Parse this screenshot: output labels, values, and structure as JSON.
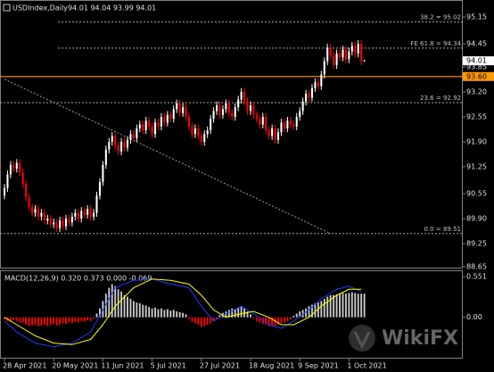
{
  "chart_data": {
    "type": "candlestick",
    "title": "USDIndex,Daily",
    "ohlc_label": "94.01 94.04 93.99 94.01",
    "up_color": "#ffffff",
    "down_color": "#ff0000",
    "open": [
      90.5,
      90.7,
      91.05,
      91.3,
      91.2,
      91.35,
      91.1,
      90.8,
      90.45,
      90.2,
      90.05,
      90.15,
      89.95,
      90.05,
      89.85,
      89.9,
      89.75,
      89.8,
      89.65,
      89.85,
      89.7,
      89.9,
      89.8,
      89.95,
      90.05,
      89.9,
      90.1,
      90.0,
      90.15,
      89.95,
      90.05,
      90.5,
      90.85,
      91.3,
      91.7,
      91.9,
      92.05,
      91.8,
      91.65,
      91.9,
      91.75,
      91.95,
      92.1,
      92.0,
      92.25,
      92.35,
      92.2,
      92.45,
      92.3,
      92.1,
      92.4,
      92.3,
      92.55,
      92.4,
      92.6,
      92.5,
      92.75,
      92.9,
      92.65,
      92.8,
      92.55,
      92.3,
      92.1,
      92.25,
      92.05,
      91.9,
      92.1,
      92.2,
      92.5,
      92.7,
      92.85,
      92.6,
      92.75,
      92.9,
      92.65,
      92.55,
      92.8,
      93.0,
      93.2,
      92.95,
      92.7,
      92.85,
      92.6,
      92.5,
      92.35,
      92.55,
      92.2,
      92.05,
      92.25,
      91.95,
      92.15,
      92.4,
      92.25,
      92.45,
      92.35,
      92.3,
      92.55,
      92.7,
      92.95,
      93.15,
      93.05,
      93.3,
      93.45,
      93.35,
      93.65,
      94.0,
      94.35,
      94.15,
      93.9,
      94.2,
      94.1,
      94.3,
      94.05,
      94.25,
      94.4,
      94.2,
      94.45,
      94.01
    ],
    "high": [
      90.8,
      91.15,
      91.4,
      91.4,
      91.45,
      91.45,
      91.2,
      90.9,
      90.55,
      90.3,
      90.25,
      90.25,
      90.15,
      90.15,
      90.0,
      90.0,
      89.9,
      89.9,
      89.95,
      89.95,
      90.0,
      90.0,
      90.05,
      90.15,
      90.15,
      90.2,
      90.2,
      90.25,
      90.25,
      90.15,
      90.6,
      90.95,
      91.4,
      91.8,
      92.0,
      92.15,
      92.15,
      91.9,
      92.0,
      92.0,
      92.05,
      92.2,
      92.2,
      92.35,
      92.45,
      92.45,
      92.55,
      92.55,
      92.4,
      92.5,
      92.5,
      92.65,
      92.65,
      92.7,
      92.7,
      92.85,
      93.0,
      93.0,
      92.9,
      92.9,
      92.65,
      92.4,
      92.35,
      92.35,
      92.15,
      92.2,
      92.3,
      92.6,
      92.8,
      92.95,
      92.95,
      92.85,
      93.0,
      93.0,
      92.75,
      92.9,
      93.1,
      93.3,
      93.3,
      93.05,
      92.95,
      92.95,
      92.7,
      92.6,
      92.65,
      92.65,
      92.3,
      92.35,
      92.35,
      92.25,
      92.5,
      92.5,
      92.55,
      92.55,
      92.45,
      92.65,
      92.8,
      93.05,
      93.25,
      93.25,
      93.4,
      93.55,
      93.55,
      93.75,
      94.1,
      94.45,
      94.45,
      94.25,
      94.3,
      94.3,
      94.4,
      94.4,
      94.35,
      94.5,
      94.5,
      94.55,
      94.55,
      94.04
    ],
    "low": [
      90.4,
      90.6,
      90.95,
      91.1,
      91.1,
      91.0,
      90.7,
      90.35,
      90.1,
      89.95,
      89.95,
      89.85,
      89.85,
      89.75,
      89.75,
      89.65,
      89.65,
      89.55,
      89.55,
      89.6,
      89.6,
      89.7,
      89.7,
      89.85,
      89.8,
      89.8,
      89.9,
      89.9,
      89.85,
      89.85,
      89.95,
      90.4,
      90.75,
      91.2,
      91.6,
      91.8,
      91.7,
      91.55,
      91.55,
      91.65,
      91.65,
      91.85,
      91.9,
      91.9,
      92.15,
      92.1,
      92.1,
      92.2,
      92.0,
      92.0,
      92.2,
      92.2,
      92.3,
      92.3,
      92.4,
      92.4,
      92.65,
      92.55,
      92.55,
      92.45,
      92.2,
      92.0,
      92.0,
      91.95,
      91.8,
      91.8,
      92.0,
      92.1,
      92.4,
      92.6,
      92.5,
      92.5,
      92.65,
      92.55,
      92.45,
      92.45,
      92.7,
      92.9,
      92.85,
      92.6,
      92.6,
      92.5,
      92.4,
      92.25,
      92.25,
      92.1,
      91.95,
      91.95,
      91.85,
      91.85,
      92.05,
      92.15,
      92.15,
      92.25,
      92.2,
      92.2,
      92.45,
      92.6,
      92.85,
      92.95,
      92.95,
      93.2,
      93.25,
      93.25,
      93.55,
      93.9,
      94.05,
      93.8,
      93.8,
      94.0,
      94.0,
      93.95,
      93.95,
      94.15,
      94.1,
      94.1,
      93.9,
      93.99
    ],
    "close": [
      90.7,
      91.05,
      91.3,
      91.2,
      91.35,
      91.1,
      90.8,
      90.45,
      90.2,
      90.05,
      90.15,
      89.95,
      90.05,
      89.85,
      89.9,
      89.75,
      89.8,
      89.65,
      89.85,
      89.7,
      89.9,
      89.8,
      89.95,
      90.05,
      89.9,
      90.1,
      90.0,
      90.15,
      89.95,
      90.05,
      90.5,
      90.85,
      91.3,
      91.7,
      91.9,
      92.05,
      91.8,
      91.65,
      91.9,
      91.75,
      91.95,
      92.1,
      92.0,
      92.25,
      92.35,
      92.2,
      92.45,
      92.3,
      92.1,
      92.4,
      92.3,
      92.55,
      92.4,
      92.6,
      92.5,
      92.75,
      92.9,
      92.65,
      92.8,
      92.55,
      92.3,
      92.1,
      92.25,
      92.05,
      91.9,
      92.1,
      92.2,
      92.5,
      92.7,
      92.85,
      92.6,
      92.75,
      92.9,
      92.65,
      92.55,
      92.8,
      93.0,
      93.2,
      92.95,
      92.7,
      92.85,
      92.6,
      92.5,
      92.35,
      92.55,
      92.2,
      92.05,
      92.25,
      91.95,
      92.15,
      92.4,
      92.25,
      92.45,
      92.35,
      92.3,
      92.55,
      92.7,
      92.95,
      93.15,
      93.05,
      93.3,
      93.45,
      93.35,
      93.65,
      94.0,
      94.35,
      94.15,
      93.9,
      94.2,
      94.1,
      94.3,
      94.05,
      94.25,
      94.4,
      94.2,
      94.45,
      94.0,
      94.01
    ],
    "xlim": [
      -1.45,
      149
    ],
    "xticks": [
      {
        "value": 0,
        "label": "28 Apr 2021"
      },
      {
        "value": 16,
        "label": "20 May 2021"
      },
      {
        "value": 32,
        "label": "11 Jun 2021"
      },
      {
        "value": 48,
        "label": "5 Jul 2021"
      },
      {
        "value": 64,
        "label": "27 Jul 2021"
      },
      {
        "value": 80,
        "label": "18 Aug 2021"
      },
      {
        "value": 96,
        "label": "9 Sep 2021"
      },
      {
        "value": 112,
        "label": "1 Oct 2021"
      }
    ],
    "ylim": [
      88.6,
      95.57
    ],
    "yticks": [
      95.15,
      94.45,
      93.85,
      {
        "value": 93.2,
        "label": "93.20"
      },
      92.55,
      {
        "value": 91.9,
        "label": "91.90"
      },
      91.25,
      90.55,
      {
        "value": 89.9,
        "label": "89.90"
      },
      89.25,
      88.65
    ],
    "levels": [
      {
        "label": "38.2 = 95.02",
        "value": 95.02
      },
      {
        "label": "FE 61.8 = 94.34",
        "value": 94.34
      },
      {
        "label": "23.6 = 92.92",
        "value": 92.92
      },
      {
        "label": "0.0 = 89.51",
        "value": 89.51
      }
    ],
    "level_color": "#c0c0c0",
    "horizontal_line": {
      "value": 93.6,
      "label": "93.60",
      "color": "#ff9900"
    },
    "last_price": 94.01,
    "trendline": {
      "x": [
        0,
        106
      ],
      "y": [
        93.53,
        89.51
      ],
      "color": "#c0c0c0"
    },
    "indicator": {
      "type": "macd",
      "label": "MACD(12,26,9) 0.320 0.373 0.000 -0.069",
      "ylim": [
        -0.56,
        0.625
      ],
      "yticks": [
        0.551,
        {
          "value": 0,
          "label": "0.00"
        }
      ],
      "histogram": [
        -0.03,
        -0.05,
        -0.06,
        -0.04,
        -0.05,
        -0.07,
        -0.08,
        -0.1,
        -0.12,
        -0.11,
        -0.1,
        -0.12,
        -0.11,
        -0.1,
        -0.12,
        -0.1,
        -0.09,
        -0.11,
        -0.1,
        -0.08,
        -0.09,
        -0.07,
        -0.08,
        -0.06,
        -0.07,
        -0.05,
        -0.06,
        -0.04,
        -0.05,
        -0.02,
        0.05,
        0.12,
        0.22,
        0.32,
        0.4,
        0.45,
        0.42,
        0.38,
        0.35,
        0.3,
        0.28,
        0.25,
        0.22,
        0.2,
        0.19,
        0.17,
        0.16,
        0.14,
        0.12,
        0.13,
        0.11,
        0.12,
        0.1,
        0.11,
        0.09,
        0.1,
        0.08,
        0.07,
        0.06,
        0.04,
        -0.02,
        -0.06,
        -0.08,
        -0.1,
        -0.13,
        -0.12,
        -0.1,
        -0.08,
        -0.05,
        -0.02,
        0.03,
        0.06,
        0.08,
        0.1,
        0.12,
        0.11,
        0.13,
        0.15,
        0.12,
        0.08,
        0.04,
        -0.02,
        -0.05,
        -0.07,
        -0.09,
        -0.1,
        -0.12,
        -0.11,
        -0.12,
        -0.1,
        -0.08,
        -0.07,
        -0.05,
        -0.03,
        0.02,
        0.05,
        0.08,
        0.1,
        0.12,
        0.15,
        0.17,
        0.19,
        0.2,
        0.22,
        0.25,
        0.28,
        0.3,
        0.3,
        0.31,
        0.32,
        0.33,
        0.32,
        0.33,
        0.34,
        0.33,
        0.32,
        0.32,
        0.32
      ],
      "up_color": "#c8c8c8",
      "down_color": "#ff0000",
      "x": [
        0,
        4,
        10,
        16,
        22,
        28,
        32,
        36,
        42,
        48,
        54,
        60,
        64,
        68,
        72,
        77,
        81,
        86,
        90,
        94,
        99,
        103,
        108,
        112,
        116
      ],
      "lines": [
        {
          "color": "#1e3cff",
          "values": [
            -0.05,
            -0.2,
            -0.35,
            -0.4,
            -0.35,
            -0.2,
            0.1,
            0.4,
            0.5,
            0.52,
            0.45,
            0.4,
            0.15,
            -0.05,
            0.05,
            0.15,
            0.05,
            -0.1,
            -0.15,
            -0.05,
            0.1,
            0.25,
            0.38,
            0.42,
            0.35
          ]
        },
        {
          "color": "#ffff00",
          "values": [
            0,
            -0.1,
            -0.25,
            -0.35,
            -0.37,
            -0.3,
            -0.1,
            0.15,
            0.4,
            0.52,
            0.5,
            0.45,
            0.3,
            0.1,
            0,
            0.05,
            0.08,
            0,
            -0.1,
            -0.1,
            0,
            0.15,
            0.3,
            0.38,
            0.38
          ]
        }
      ]
    },
    "watermark": "WikiFX"
  }
}
